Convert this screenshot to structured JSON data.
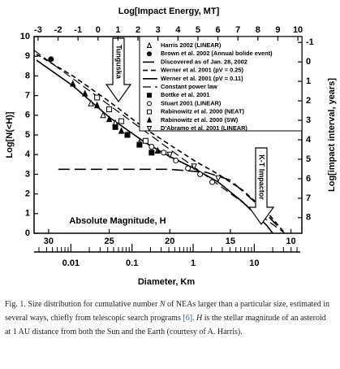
{
  "chart_data": {
    "type": "line",
    "title": "Log[Impact Energy, MT]",
    "ylabel": "Log[N(<H)]",
    "xlabel": "Absolute Magnitude, H",
    "color": "#000000",
    "xlim": [
      31.2,
      9.1
    ],
    "xticks": [
      30,
      25,
      20,
      15,
      10
    ],
    "ylim": [
      0,
      10
    ],
    "yticks": [
      0,
      1,
      2,
      3,
      4,
      5,
      6,
      7,
      8,
      9,
      10
    ],
    "top_axis": {
      "lim": [
        -3.2,
        10.2
      ],
      "ticks": [
        -3,
        -2,
        -1,
        0,
        1,
        2,
        3,
        4,
        5,
        6,
        7,
        8,
        9,
        10
      ]
    },
    "right_axis": {
      "label": "Log[impact interval, years]",
      "lim": [
        8.8,
        -1.3
      ],
      "ticks": [
        -1,
        0,
        1,
        2,
        3,
        4,
        5,
        6,
        7,
        8
      ]
    },
    "diameter_axis": {
      "label": "Diameter, Km",
      "lim": [
        0.0025,
        60
      ],
      "ticks": [
        0.01,
        0.1,
        1,
        10
      ],
      "log": true
    },
    "annotations": [
      "Tunguska",
      "K-T Impactor"
    ],
    "series": [
      {
        "name": "Harris 2002 (LINEAR)",
        "marker": "triangle-open",
        "x": [
          26.5,
          25.5,
          24.5,
          23.5,
          22.5
        ],
        "values": [
          6.6,
          6.0,
          5.6,
          5.0,
          4.6
        ]
      },
      {
        "name": "Brown et al. 2002 (Annual bolide event)",
        "marker": "circle-filled",
        "x": [
          29.8
        ],
        "values": [
          8.85
        ]
      },
      {
        "name": "Discovered as of Jan. 28, 2002",
        "dash": "14 6",
        "width": 1.6,
        "x": [
          29.2,
          25,
          20,
          17,
          15,
          13,
          11
        ],
        "values": [
          3.25,
          3.25,
          3.25,
          3.1,
          2.7,
          1.6,
          0.3
        ]
      },
      {
        "name": "Werner et al. 2001 (pV = 0.25)",
        "dash": "6 4",
        "width": 1.6,
        "x": [
          31,
          28,
          25,
          22,
          20,
          18,
          16,
          14,
          12,
          10.5
        ],
        "values": [
          9.1,
          8.0,
          6.7,
          5.3,
          4.5,
          3.7,
          3.0,
          2.2,
          1.1,
          0
        ]
      },
      {
        "name": "Werner et al. 2001 (pV = 0.11)",
        "dash": "",
        "width": 1.6,
        "x": [
          31,
          28,
          25,
          22,
          20,
          18,
          16,
          14,
          12,
          11.5
        ],
        "values": [
          8.8,
          7.5,
          5.9,
          4.6,
          3.9,
          3.3,
          2.6,
          1.6,
          0.4,
          0
        ]
      },
      {
        "name": "Constant power law",
        "dash": "10 5",
        "width": 1.2,
        "x": [
          31.2,
          10.5
        ],
        "values": [
          9.3,
          0
        ]
      },
      {
        "name": "Bottke et al. 2001",
        "marker": "square-filled",
        "x": [
          24.5,
          23.5,
          22.5,
          21.5
        ],
        "values": [
          5.4,
          5.0,
          4.5,
          4.1
        ]
      },
      {
        "name": "Stuart 2001 (LINEAR)",
        "marker": "circle-open",
        "x": [
          21.5,
          20.5,
          19.5,
          18.5,
          17.5,
          16.5
        ],
        "values": [
          4.4,
          4.1,
          3.7,
          3.3,
          3.0,
          2.6
        ]
      },
      {
        "name": "Rabinowitz et al. 2000 (NEAT)",
        "marker": "square-open",
        "x": [
          26,
          25,
          24,
          22
        ],
        "values": [
          6.9,
          6.3,
          5.7,
          4.7
        ]
      },
      {
        "name": "Rabinowitz et al. 2000 (SW)",
        "marker": "triangle-filled",
        "x": [
          28,
          27,
          26,
          25,
          24,
          21
        ],
        "values": [
          7.6,
          7.1,
          6.5,
          5.8,
          5.2,
          4.2
        ]
      },
      {
        "name": "D'Abramo et al. 2001 (LINEAR)",
        "marker": "triangle-down-open",
        "x": [
          20,
          18,
          16
        ],
        "values": [
          4.0,
          3.4,
          2.8
        ]
      }
    ]
  },
  "caption": [
    "Fig. 1. Size distribution for cumulative number ",
    "N",
    " of NEAs larger than a particular size, estimated in several ways, chiefly from telescopic search programs ",
    "[6]",
    ". ",
    "H",
    " is the stellar magnitude of an asteroid at 1 AU distance from both the Sun and the Earth (courtesy of A. Harris)."
  ]
}
